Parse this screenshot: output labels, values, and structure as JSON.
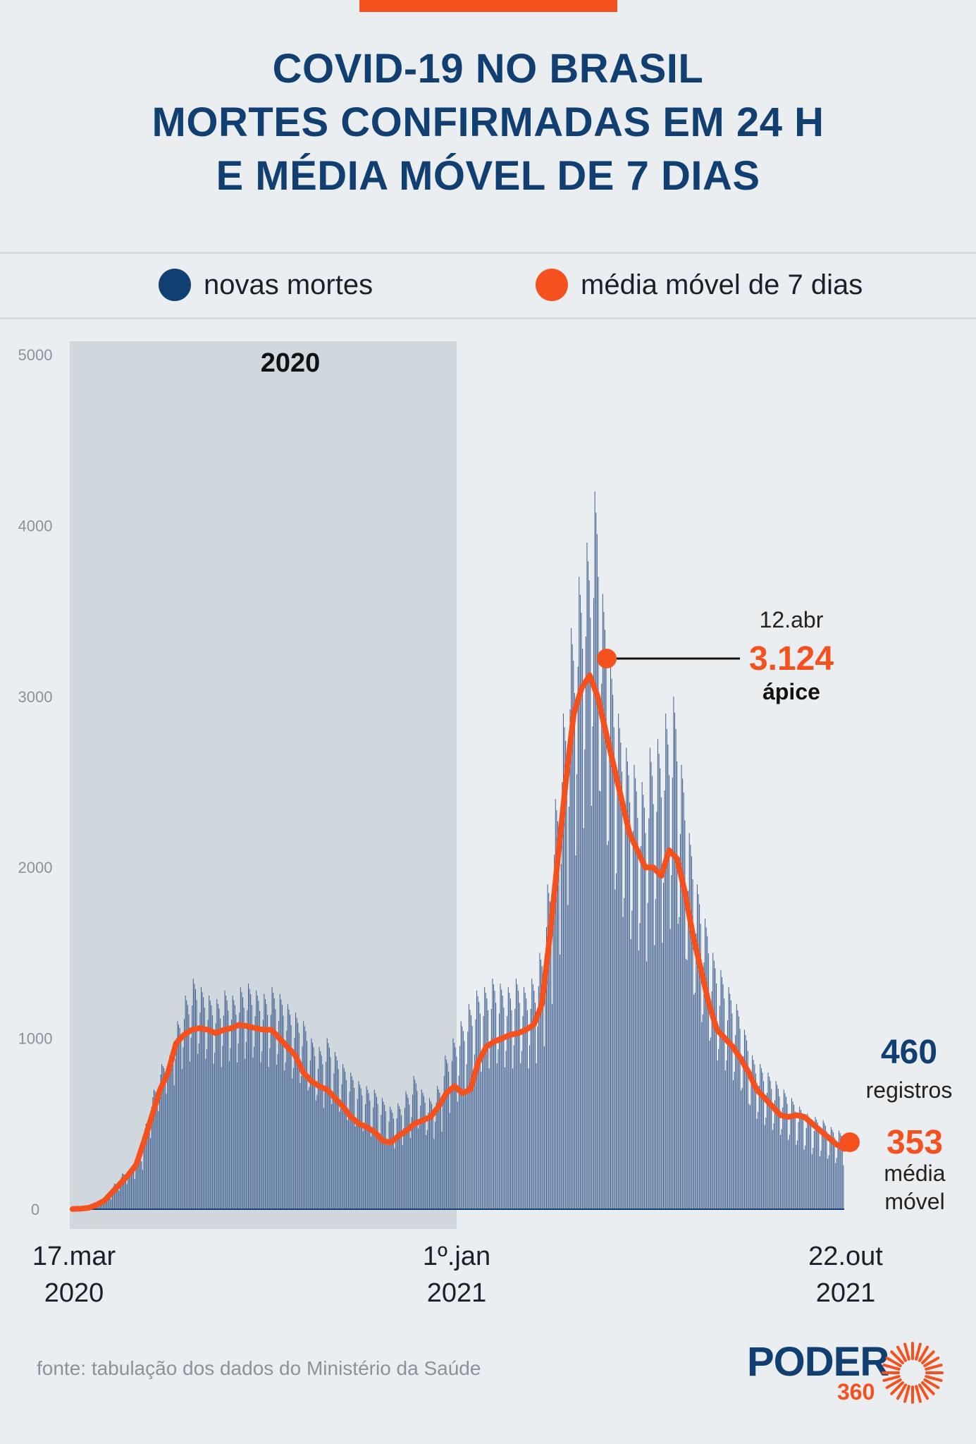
{
  "header": {
    "title_lines": [
      "COVID-19 NO BRASIL",
      "MORTES CONFIRMADAS EM 24 H",
      "E MÉDIA MÓVEL DE 7 DIAS"
    ]
  },
  "legend": {
    "items": [
      {
        "label": "novas mortes",
        "color": "#123f72"
      },
      {
        "label": "média móvel de 7 dias",
        "color": "#f4511e"
      }
    ]
  },
  "colors": {
    "bars": "#3e5e8e",
    "line": "#f4511e",
    "shade": "#d0d8de",
    "title": "#123f72"
  },
  "chart_data": {
    "type": "bar",
    "y_ticks": [
      "5000",
      "4000",
      "3000",
      "2000",
      "1000",
      "0"
    ],
    "ylim": [
      0,
      5000
    ],
    "shaded_period_label": "2020",
    "x_labels": [
      {
        "line1": "17.mar",
        "line2": "2020"
      },
      {
        "line1": "1º.jan",
        "line2": "2021"
      },
      {
        "line1": "22.out",
        "line2": "2021"
      }
    ],
    "series": [
      {
        "name": "novas mortes",
        "kind": "bar",
        "weekly_peak_values": [
          1,
          5,
          10,
          40,
          80,
          150,
          210,
          240,
          300,
          500,
          700,
          850,
          900,
          1100,
          1250,
          1350,
          1300,
          1250,
          1230,
          1280,
          1250,
          1300,
          1320,
          1280,
          1260,
          1300,
          1260,
          1200,
          1150,
          1100,
          1000,
          950,
          1000,
          920,
          850,
          800,
          750,
          720,
          700,
          650,
          600,
          620,
          690,
          780,
          700,
          650,
          720,
          900,
          1000,
          1100,
          1200,
          1280,
          1300,
          1350,
          1320,
          1300,
          1350,
          1300,
          1350,
          1500,
          1900,
          2400,
          2900,
          3400,
          3700,
          3900,
          4200,
          3600,
          3200,
          2900,
          2700,
          2600,
          2500,
          2700,
          2750,
          2900,
          3000,
          2600,
          2200,
          1900,
          1700,
          1500,
          1400,
          1300,
          1200,
          1050,
          900,
          850,
          800,
          750,
          700,
          650,
          600,
          560,
          540,
          520,
          480,
          460
        ],
        "weekly_trough_values": [
          1,
          3,
          8,
          25,
          50,
          90,
          120,
          150,
          200,
          380,
          520,
          600,
          650,
          700,
          700,
          720,
          700,
          680,
          660,
          690,
          690,
          700,
          700,
          680,
          650,
          650,
          620,
          580,
          560,
          520,
          480,
          440,
          450,
          420,
          380,
          350,
          330,
          300,
          280,
          260,
          250,
          270,
          300,
          340,
          320,
          310,
          340,
          420,
          470,
          520,
          560,
          600,
          620,
          640,
          620,
          620,
          640,
          620,
          640,
          720,
          900,
          1100,
          1300,
          1500,
          1600,
          1700,
          1700,
          1500,
          1300,
          1200,
          1100,
          1050,
          1000,
          1050,
          1050,
          1100,
          1100,
          980,
          850,
          750,
          680,
          600,
          560,
          520,
          480,
          430,
          370,
          340,
          320,
          300,
          280,
          260,
          240,
          220,
          210,
          200,
          180,
          170
        ]
      },
      {
        "name": "média móvel de 7 dias",
        "kind": "line",
        "weekly_values": [
          1,
          3,
          8,
          25,
          50,
          100,
          150,
          200,
          260,
          400,
          550,
          700,
          800,
          970,
          1020,
          1050,
          1060,
          1050,
          1030,
          1050,
          1060,
          1080,
          1070,
          1060,
          1050,
          1050,
          1000,
          950,
          900,
          800,
          750,
          720,
          700,
          650,
          600,
          540,
          500,
          480,
          450,
          400,
          390,
          430,
          460,
          500,
          520,
          540,
          600,
          680,
          720,
          680,
          700,
          860,
          950,
          980,
          1000,
          1020,
          1030,
          1050,
          1080,
          1200,
          1600,
          2050,
          2500,
          2900,
          3050,
          3124,
          3000,
          2800,
          2600,
          2400,
          2200,
          2100,
          2000,
          2000,
          1950,
          2100,
          2050,
          1850,
          1600,
          1400,
          1200,
          1050,
          1000,
          950,
          880,
          800,
          700,
          650,
          600,
          550,
          540,
          550,
          540,
          500,
          460,
          420,
          380,
          353
        ]
      }
    ],
    "annotations": [
      {
        "date": "12.abr",
        "value_label": "3.124",
        "value": 3124,
        "caption": "ápice"
      },
      {
        "value_label": "460",
        "value": 460,
        "caption": "registros"
      },
      {
        "value_label": "353",
        "value": 353,
        "caption_line1": "média",
        "caption_line2": "móvel"
      }
    ]
  },
  "footer": {
    "source": "fonte: tabulação dos dados do Ministério da Saúde",
    "logo_word": "PODER",
    "logo_number": "360"
  }
}
